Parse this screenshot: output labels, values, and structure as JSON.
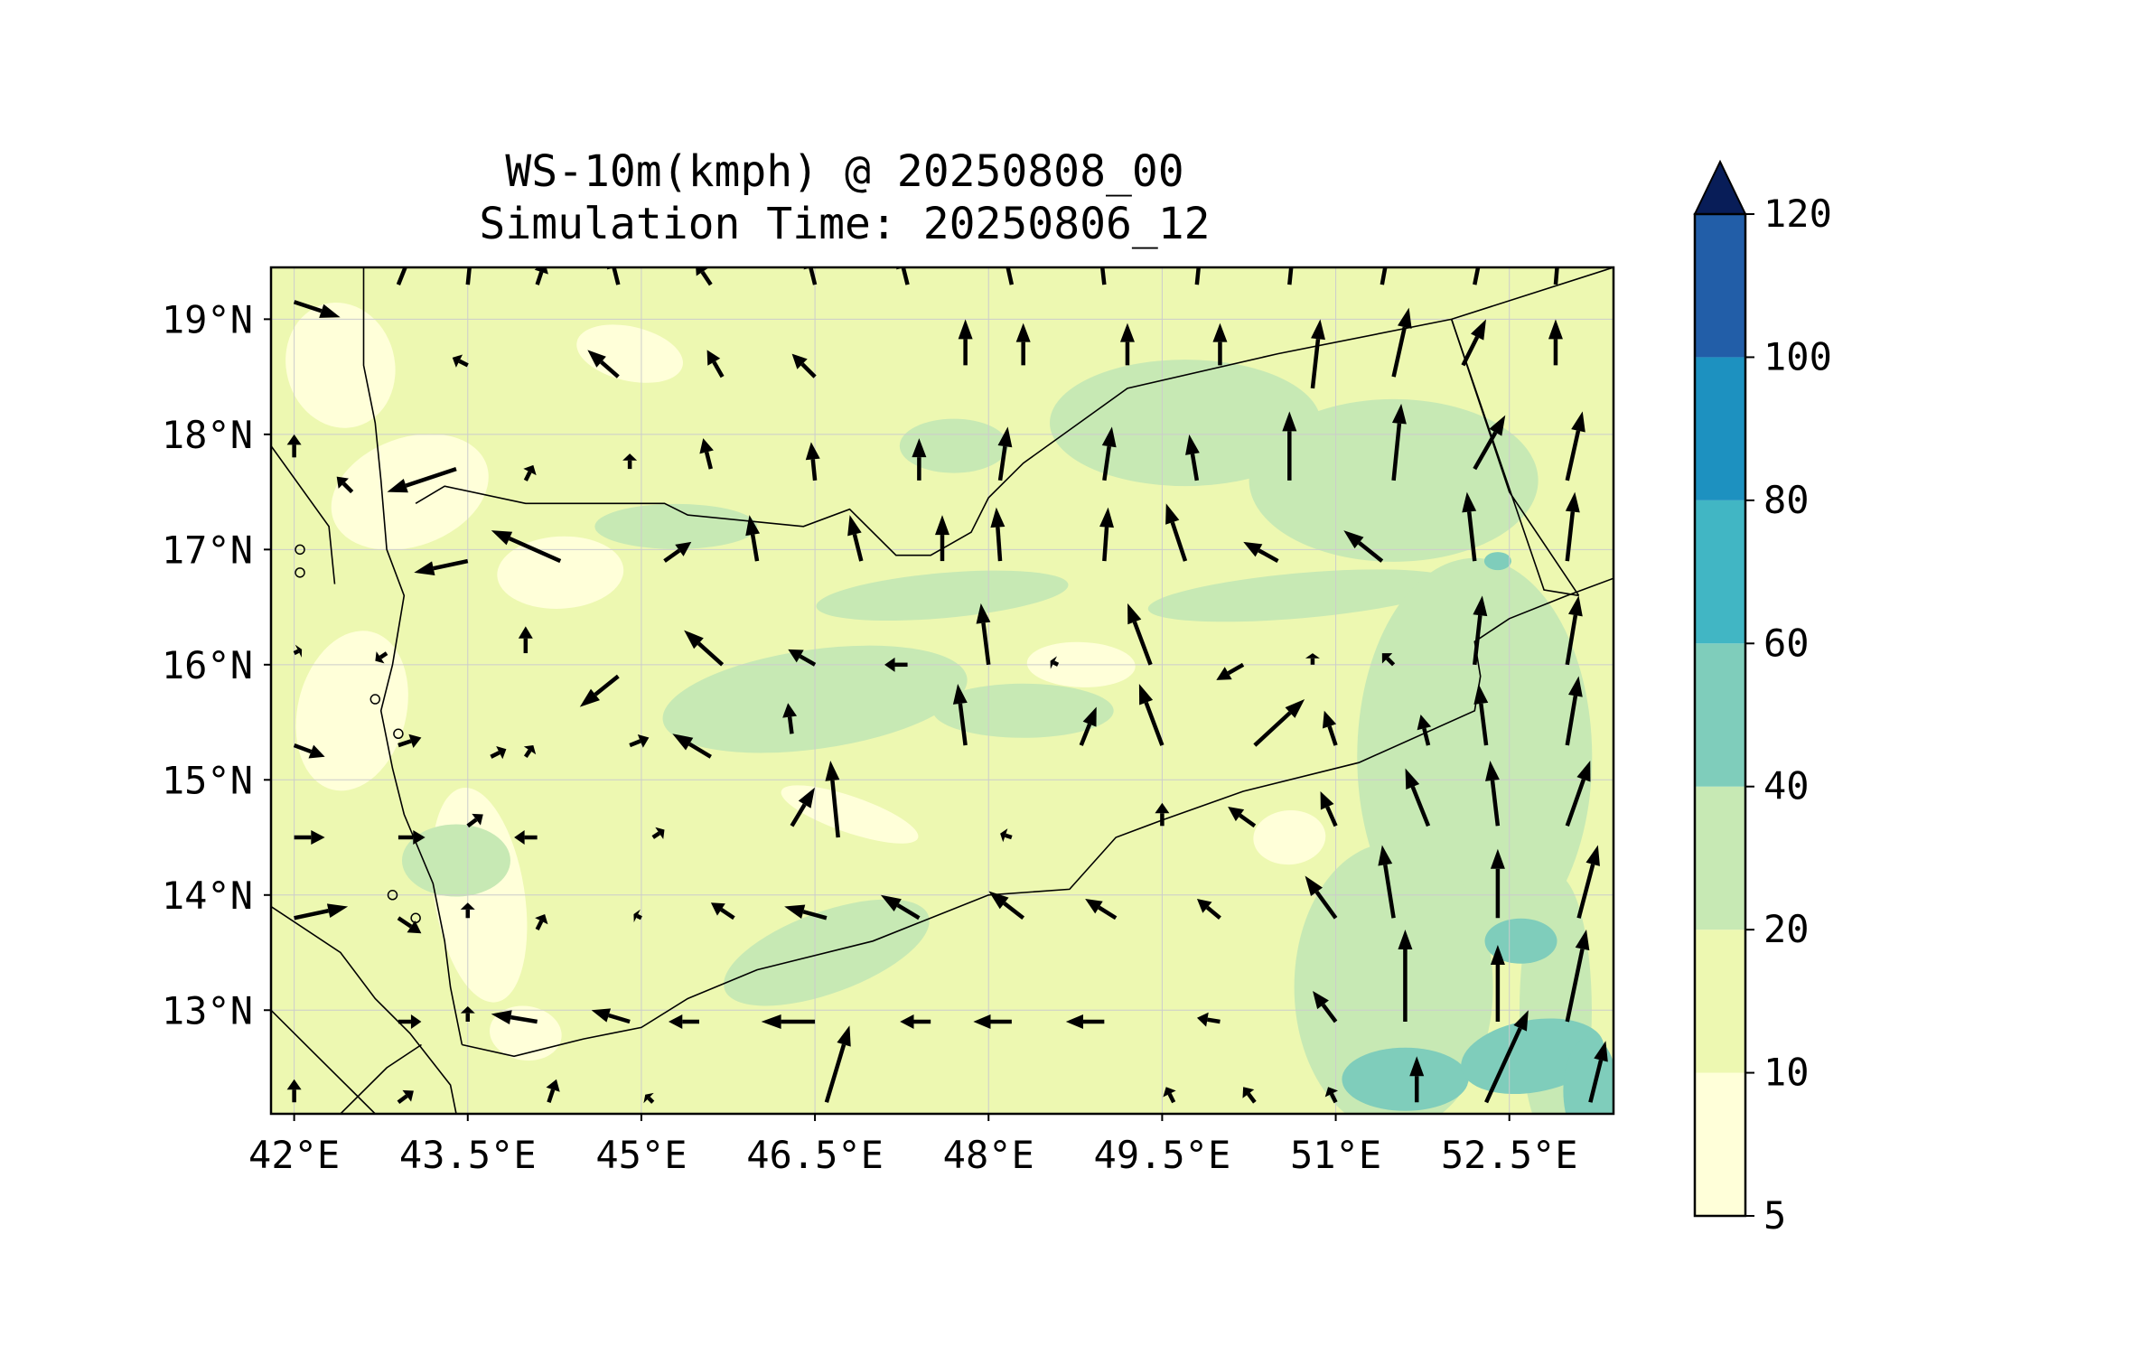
{
  "title": {
    "line1": "WS-10m(kmph) @ 20250808_00",
    "line2": "Simulation Time: 20250806_12"
  },
  "map": {
    "projection": "PlateCarree",
    "lon_range": [
      41.8,
      53.4
    ],
    "lat_range": [
      12.1,
      19.45
    ],
    "lon_ticks": [
      42,
      43.5,
      45,
      46.5,
      48,
      49.5,
      51,
      52.5
    ],
    "lon_tick_labels": [
      "42°E",
      "43.5°E",
      "45°E",
      "46.5°E",
      "48°E",
      "49.5°E",
      "51°E",
      "52.5°E"
    ],
    "lat_ticks": [
      13,
      14,
      15,
      16,
      17,
      18,
      19
    ],
    "lat_tick_labels": [
      "13°N",
      "14°N",
      "15°N",
      "16°N",
      "17°N",
      "18°N",
      "19°N"
    ],
    "gridlines": true,
    "background_field": "10 m wind speed (kmph), mostly 10–30 kmph inland, 30–40 kmph pockets in the southeast"
  },
  "colorbar": {
    "levels": [
      5,
      10,
      20,
      40,
      60,
      80,
      100,
      120
    ],
    "tick_labels": [
      "5",
      "10",
      "20",
      "40",
      "60",
      "80",
      "100",
      "120"
    ],
    "colors": [
      "#ffffd9",
      "#edf8b1",
      "#c7e9b4",
      "#7fcdbb",
      "#41b6c4",
      "#1d91c0",
      "#225ea8",
      "#0c2c84"
    ],
    "extend": "max",
    "extend_color": "#081d58"
  },
  "colors": {
    "vector": "#000000",
    "boundary": "#000000",
    "grid": "#cccccc"
  }
}
